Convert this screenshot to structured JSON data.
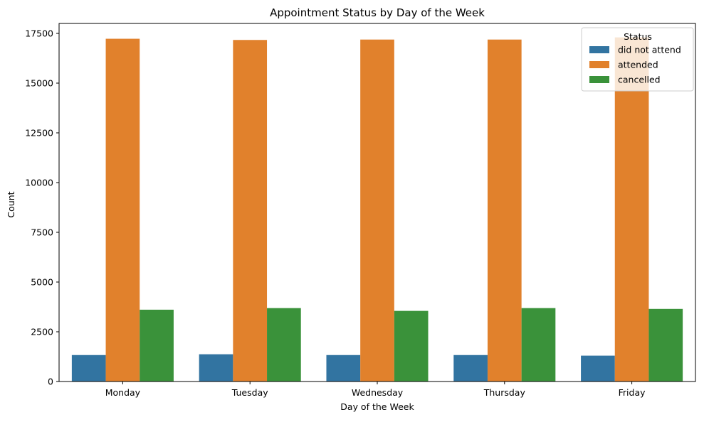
{
  "chart_data": {
    "type": "bar",
    "title": "Appointment Status by Day of the Week",
    "xlabel": "Day of the Week",
    "ylabel": "Count",
    "categories": [
      "Monday",
      "Tuesday",
      "Wednesday",
      "Thursday",
      "Friday"
    ],
    "series": [
      {
        "name": "did not attend",
        "color": "#3274a1",
        "values": [
          1330,
          1370,
          1330,
          1330,
          1300
        ]
      },
      {
        "name": "attended",
        "color": "#e1812c",
        "values": [
          17230,
          17170,
          17190,
          17190,
          17300
        ]
      },
      {
        "name": "cancelled",
        "color": "#3a923a",
        "values": [
          3610,
          3690,
          3550,
          3690,
          3650
        ]
      }
    ],
    "ylim": [
      0,
      18000
    ],
    "yticks": [
      0,
      2500,
      5000,
      7500,
      10000,
      12500,
      15000,
      17500
    ],
    "ytick_labels": [
      "0",
      "2500",
      "5000",
      "7500",
      "10000",
      "12500",
      "15000",
      "17500"
    ],
    "grid": false,
    "legend": {
      "title": "Status",
      "placement": "top-right"
    }
  }
}
